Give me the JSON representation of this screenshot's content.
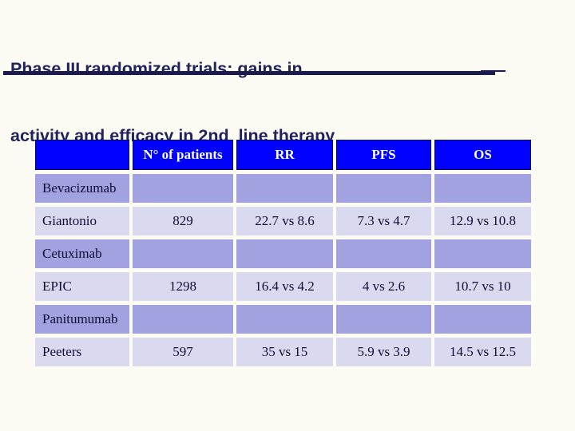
{
  "slide": {
    "title_line1": "Phase III randomized trials: gains in",
    "title_line2": "activity and efficacy in 2nd  line therapy"
  },
  "colors": {
    "title_navy": "#22225C",
    "rule_navy": "#1B1B4E",
    "header_blue": "#0101FE",
    "header_text": "#FFFFFF",
    "group_row_lavender": "#A2A2E1",
    "data_row_lavender": "#D9D9F0",
    "cell_text": "#0F0F38",
    "background": "#FCFCF5"
  },
  "table": {
    "columns": [
      "",
      "N° of patients",
      "RR",
      "PFS",
      "OS"
    ],
    "rows": [
      {
        "type": "group",
        "label": "Bevacizumab",
        "cells": [
          "",
          "",
          "",
          ""
        ]
      },
      {
        "type": "data",
        "label": "Giantonio",
        "cells": [
          "829",
          "22.7 vs 8.6",
          "7.3 vs 4.7",
          "12.9 vs 10.8"
        ]
      },
      {
        "type": "group",
        "label": "Cetuximab",
        "cells": [
          "",
          "",
          "",
          ""
        ]
      },
      {
        "type": "data",
        "label": "EPIC",
        "cells": [
          "1298",
          "16.4 vs 4.2",
          "4 vs 2.6",
          "10.7 vs 10"
        ]
      },
      {
        "type": "group",
        "label": "Panitumumab",
        "cells": [
          "",
          "",
          "",
          ""
        ]
      },
      {
        "type": "data",
        "label": "Peeters",
        "cells": [
          "597",
          "35 vs 15",
          "5.9 vs 3.9",
          "14.5 vs 12.5"
        ]
      }
    ]
  }
}
